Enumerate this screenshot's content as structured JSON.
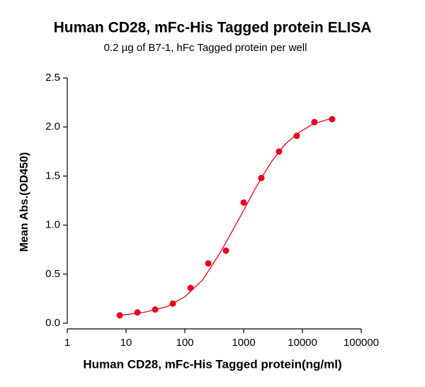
{
  "chart_data": {
    "type": "scatter",
    "title": "Human CD28, mFc-His Tagged protein ELISA",
    "subtitle": "0.2 µg of B7-1, hFc Tagged protein per well",
    "x_label": "Human CD28, mFc-His Tagged protein(ng/ml)",
    "y_label": "Mean Abs.(OD450)",
    "x_log": true,
    "xlim": [
      1,
      100000
    ],
    "xticks": [
      1,
      10,
      100,
      1000,
      10000,
      100000
    ],
    "ylim": [
      0,
      2.5
    ],
    "yticks": [
      {
        "value": 0,
        "label": "0.0"
      },
      {
        "value": 0.5,
        "label": "0.5"
      },
      {
        "value": 1,
        "label": "1.0"
      },
      {
        "value": 1.5,
        "label": "1.5"
      },
      {
        "value": 2,
        "label": "2.0"
      },
      {
        "value": 2.5,
        "label": "2.5"
      }
    ],
    "series": [
      {
        "mode": "markers",
        "color": "#e8001c",
        "x": [
          7.8,
          15.6,
          31.25,
          62.5,
          125,
          250,
          500,
          1000,
          2000,
          4000,
          8000,
          16000,
          32000
        ],
        "values": [
          0.08,
          0.11,
          0.14,
          0.2,
          0.36,
          0.61,
          0.74,
          1.23,
          1.48,
          1.75,
          1.91,
          2.05,
          2.08
        ]
      },
      {
        "mode": "line",
        "color": "#e8001c",
        "x": [
          7.8,
          20,
          50,
          100,
          200,
          400,
          700,
          1000,
          1500,
          2000,
          3000,
          5000,
          8000,
          15000,
          32000
        ],
        "values": [
          0.08,
          0.11,
          0.17,
          0.27,
          0.44,
          0.72,
          0.98,
          1.15,
          1.35,
          1.48,
          1.65,
          1.82,
          1.93,
          2.03,
          2.09
        ]
      }
    ]
  }
}
